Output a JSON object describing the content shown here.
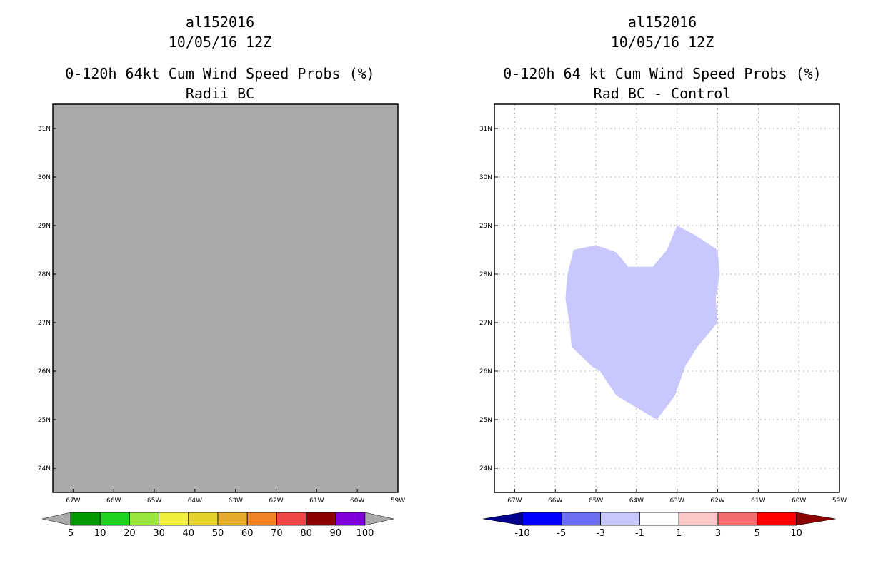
{
  "chart_data": [
    {
      "type": "heatmap",
      "storm_id": "al152016",
      "date": "10/05/16 12Z",
      "title": "0-120h 64kt Cum Wind Speed Probs (%)",
      "subtitle": "Radii BC",
      "field": "uniform below-threshold (gray) over entire domain",
      "xlim": [
        -67.5,
        -59
      ],
      "ylim": [
        23.5,
        31.5
      ],
      "x_ticks": [
        -67,
        -66,
        -65,
        -64,
        -63,
        -62,
        -61,
        -60,
        -59
      ],
      "x_tick_labels": [
        "67W",
        "66W",
        "65W",
        "64W",
        "63W",
        "62W",
        "61W",
        "60W",
        "59W"
      ],
      "y_ticks": [
        24,
        25,
        26,
        27,
        28,
        29,
        30,
        31
      ],
      "y_tick_labels": [
        "24N",
        "25N",
        "26N",
        "27N",
        "28N",
        "29N",
        "30N",
        "31N"
      ],
      "fill_color": "#aaaaaa",
      "grid": false,
      "colorbar": {
        "labels": [
          "5",
          "10",
          "20",
          "30",
          "40",
          "50",
          "60",
          "70",
          "80",
          "90",
          "100"
        ],
        "colors": [
          "#009900",
          "#1ed21e",
          "#9be63c",
          "#f0f03c",
          "#e6d22d",
          "#e6aa2d",
          "#f08228",
          "#f04646",
          "#8c0000",
          "#8200dc"
        ],
        "under_color": "#aaaaaa",
        "over_color": "#aaaaaa"
      }
    },
    {
      "type": "heatmap",
      "storm_id": "al152016",
      "date": "10/05/16 12Z",
      "title": "0-120h 64 kt Cum Wind Speed Probs (%)",
      "subtitle": "Rad BC - Control",
      "xlim": [
        -67.5,
        -59
      ],
      "ylim": [
        23.5,
        31.5
      ],
      "x_ticks": [
        -67,
        -66,
        -65,
        -64,
        -63,
        -62,
        -61,
        -60,
        -59
      ],
      "x_tick_labels": [
        "67W",
        "66W",
        "65W",
        "64W",
        "63W",
        "62W",
        "61W",
        "60W",
        "59W"
      ],
      "y_ticks": [
        24,
        25,
        26,
        27,
        28,
        29,
        30,
        31
      ],
      "y_tick_labels": [
        "24N",
        "25N",
        "26N",
        "27N",
        "28N",
        "29N",
        "30N",
        "31N"
      ],
      "grid": true,
      "region": {
        "category": "-3 to -1",
        "color": "#c8c8ff",
        "lon": [
          -63,
          -62.55,
          -62,
          -61.95,
          -62.05,
          -62,
          -62.5,
          -62.8,
          -63.05,
          -63.5,
          -63.9,
          -64.5,
          -64.9,
          -65.1,
          -65.6,
          -65.65,
          -65.75,
          -65.7,
          -65.55,
          -65,
          -64.5,
          -64.2,
          -63.6,
          -63.25
        ],
        "lat": [
          29,
          28.8,
          28.5,
          28,
          27.5,
          27,
          26.5,
          26.1,
          25.5,
          25,
          25.2,
          25.5,
          26,
          26.1,
          26.5,
          27,
          27.5,
          28,
          28.5,
          28.6,
          28.45,
          28.15,
          28.15,
          28.5
        ]
      },
      "colorbar": {
        "labels": [
          "-10",
          "-5",
          "-3",
          "-1",
          "1",
          "3",
          "5",
          "10"
        ],
        "colors": [
          "#0000ff",
          "#6e6ef0",
          "#c8c8ff",
          "#ffffff",
          "#ffc8c8",
          "#f06e6e",
          "#ff0000"
        ],
        "under_color": "#00008c",
        "over_color": "#8c0000"
      }
    }
  ]
}
